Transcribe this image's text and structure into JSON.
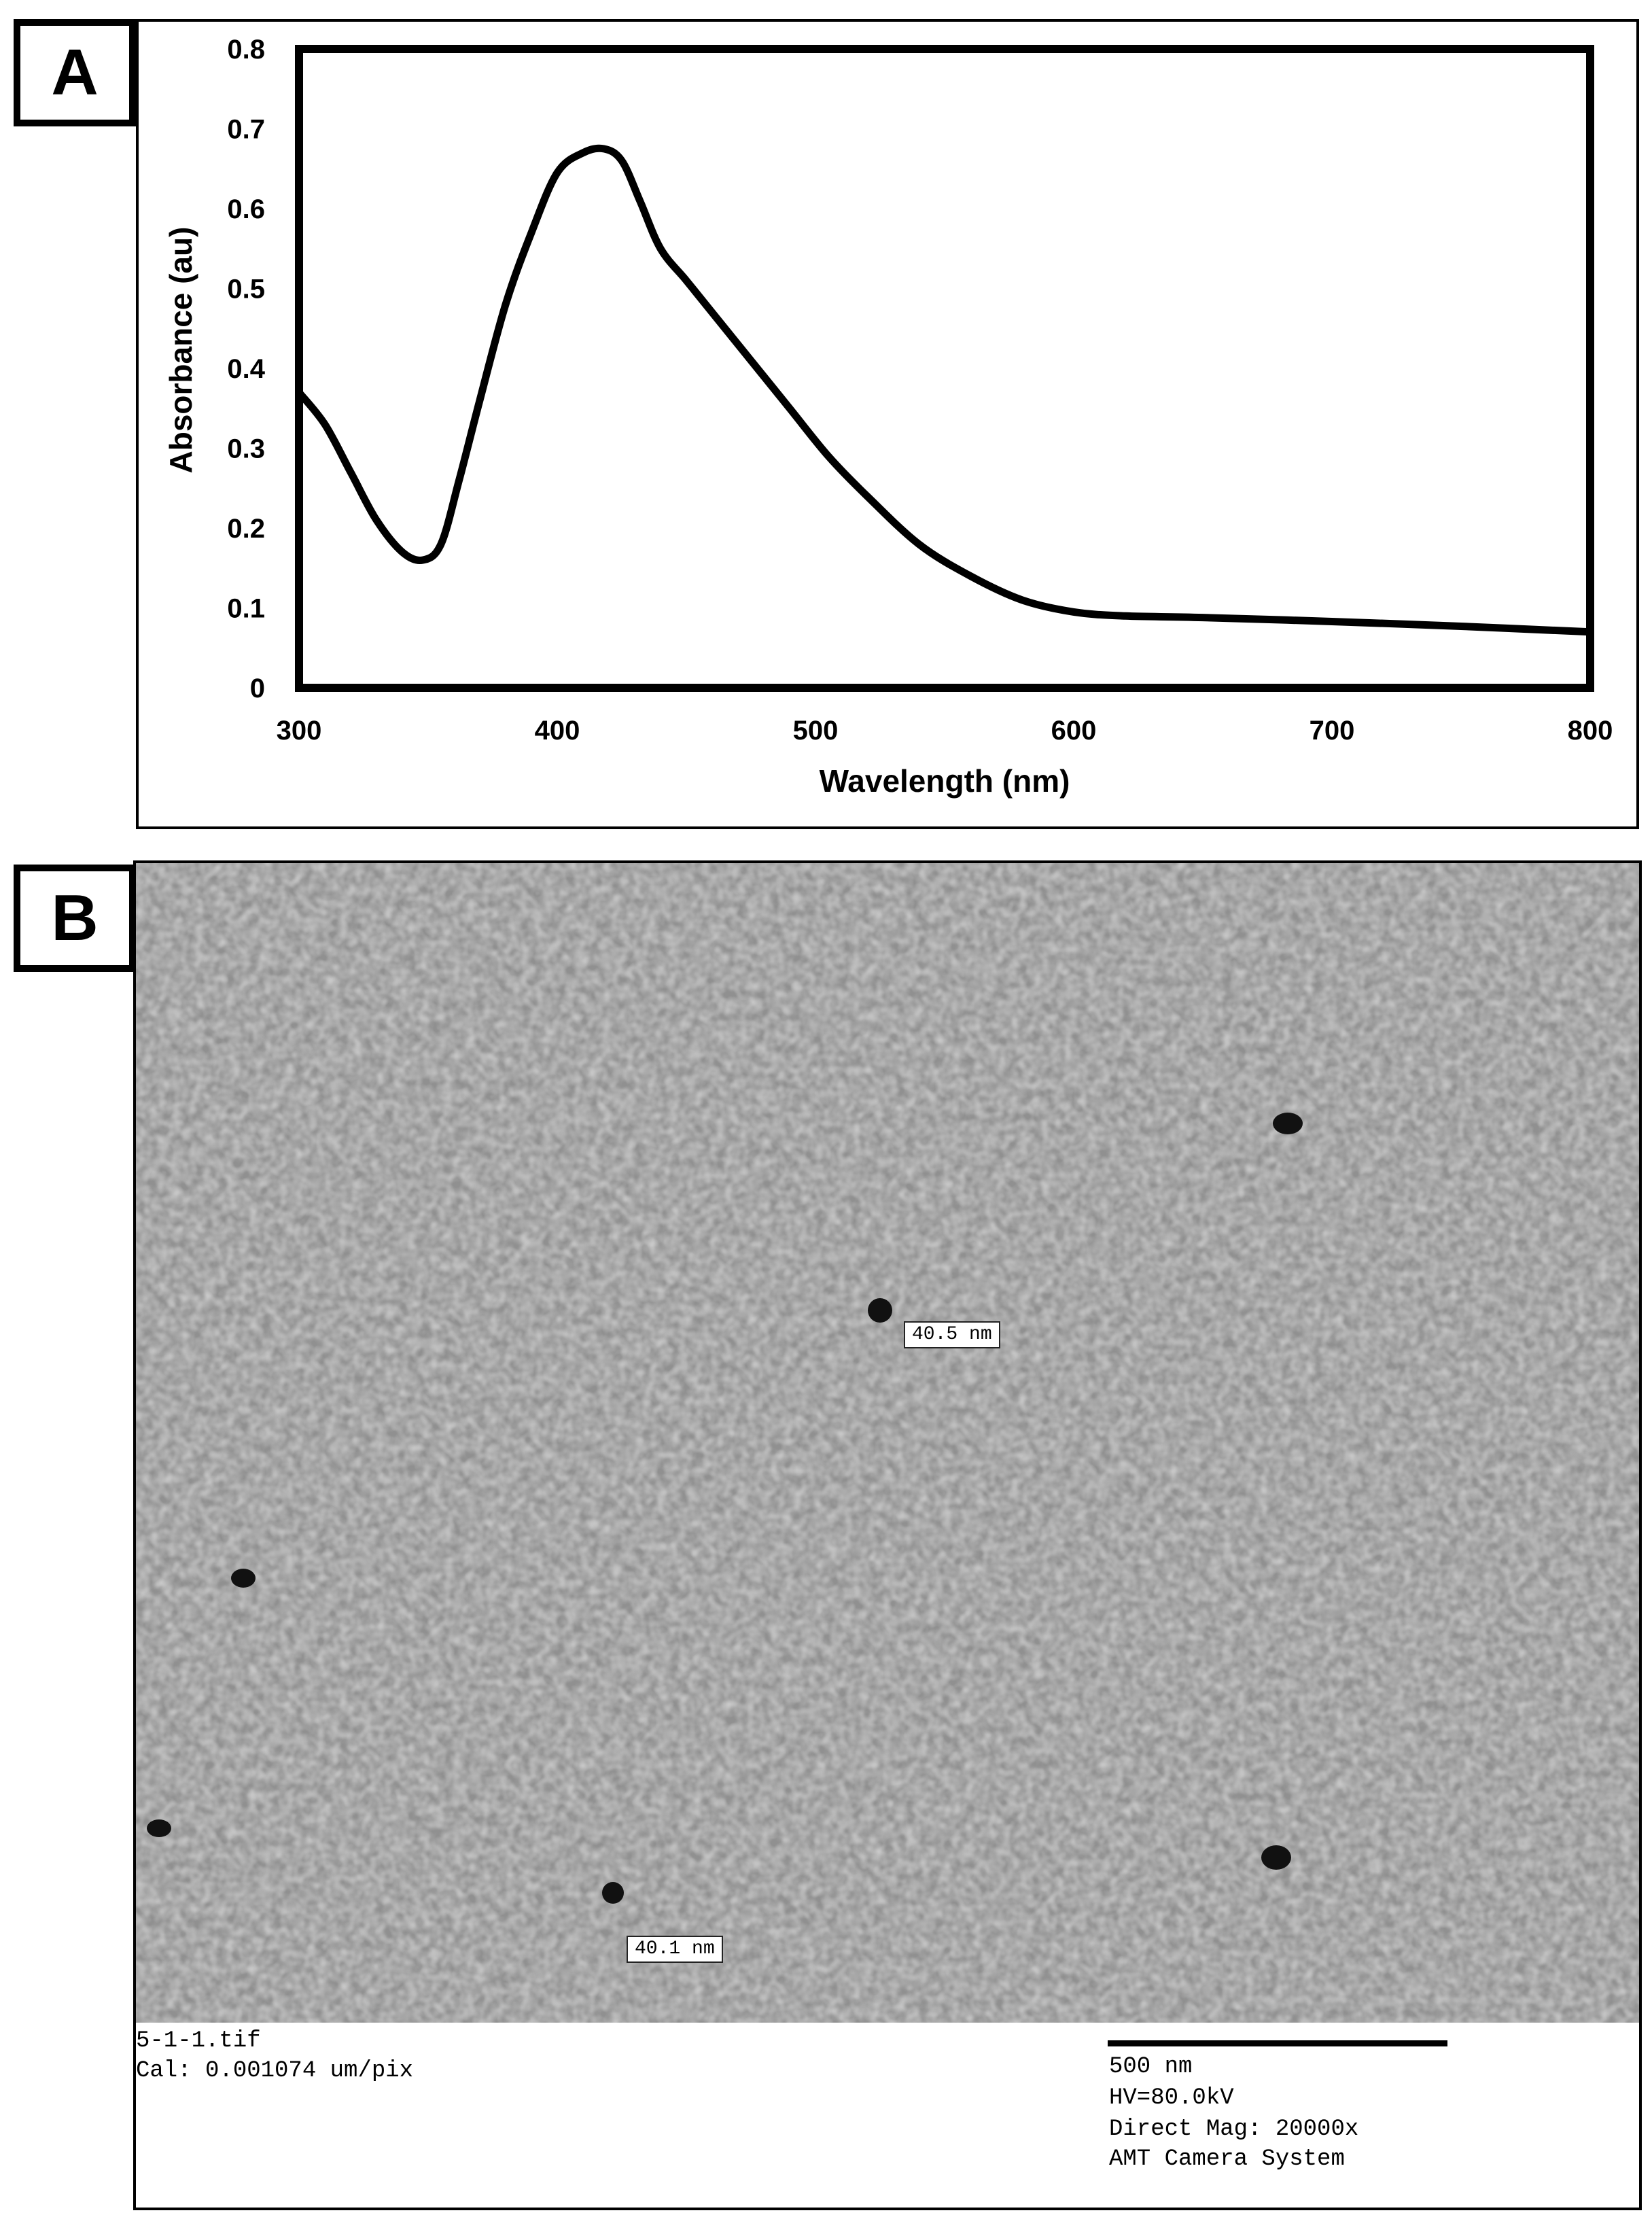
{
  "panels": {
    "a_label": "A",
    "b_label": "B"
  },
  "chart_data": {
    "type": "line",
    "title": "",
    "xlabel": "Wavelength (nm)",
    "ylabel": "Absorbance (au)",
    "xlim": [
      300,
      800
    ],
    "ylim": [
      0,
      0.8
    ],
    "x_ticks": [
      "300",
      "400",
      "500",
      "600",
      "700",
      "800"
    ],
    "y_ticks": [
      "0",
      "0.1",
      "0.2",
      "0.3",
      "0.4",
      "0.5",
      "0.6",
      "0.7",
      "0.8"
    ],
    "grid": false,
    "legend": "none",
    "series": [
      {
        "color": "#000000",
        "x": [
          300,
          310,
          320,
          330,
          340,
          348,
          355,
          362,
          370,
          380,
          390,
          400,
          410,
          418,
          425,
          432,
          440,
          450,
          460,
          475,
          490,
          505,
          520,
          540,
          560,
          580,
          600,
          620,
          650,
          700,
          750,
          800
        ],
        "y": [
          0.37,
          0.33,
          0.27,
          0.21,
          0.17,
          0.16,
          0.18,
          0.26,
          0.36,
          0.48,
          0.57,
          0.645,
          0.67,
          0.675,
          0.66,
          0.61,
          0.55,
          0.51,
          0.47,
          0.41,
          0.35,
          0.29,
          0.24,
          0.18,
          0.14,
          0.11,
          0.095,
          0.09,
          0.088,
          0.083,
          0.077,
          0.07
        ]
      }
    ]
  },
  "tem": {
    "measurements": [
      "40.5 nm",
      "40.1 nm"
    ],
    "file_name": "5-1-1.tif",
    "calibration": "Cal: 0.001074 um/pix",
    "scale_bar": "500 nm",
    "hv": "HV=80.0kV",
    "magnification": "Direct Mag: 20000x",
    "camera": "AMT Camera System"
  }
}
